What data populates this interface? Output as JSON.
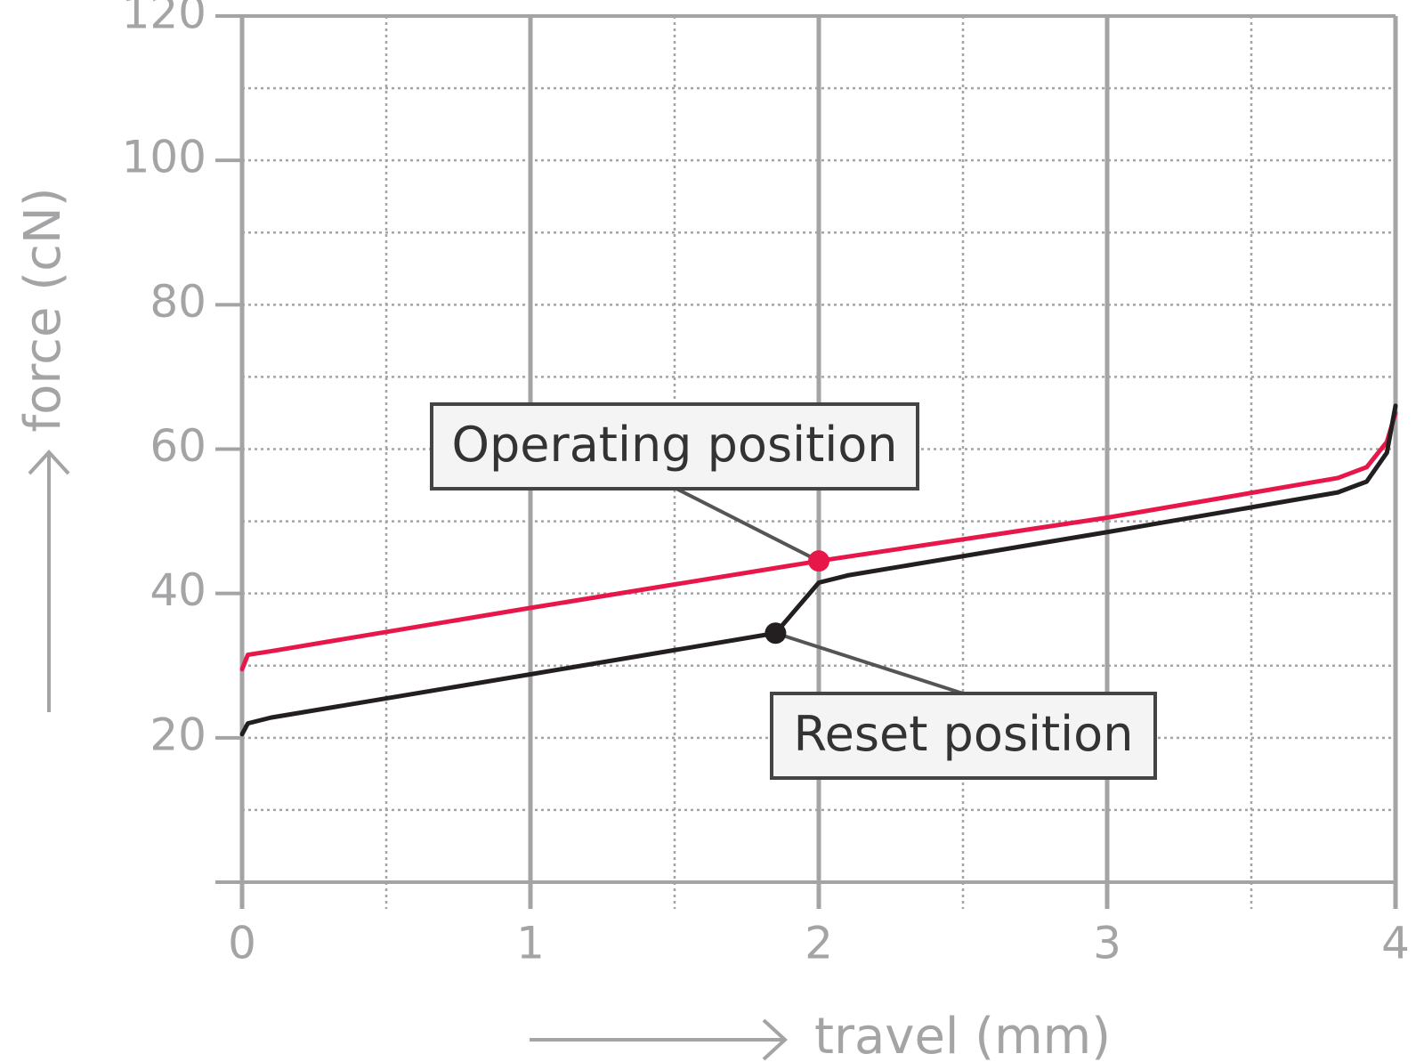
{
  "chart_data": {
    "type": "line",
    "xlabel": "travel (mm)",
    "ylabel": "force (cN)",
    "xlim": [
      0,
      4
    ],
    "ylim": [
      0,
      120
    ],
    "xticks": [
      0,
      1,
      2,
      3,
      4
    ],
    "yticks": [
      20,
      40,
      60,
      80,
      100,
      120
    ],
    "xminor": [
      0.5,
      1.5,
      2.5,
      3.5
    ],
    "yminor": [
      10,
      30,
      50,
      70,
      90,
      110
    ],
    "grid": true,
    "series": [
      {
        "color": "#e8174a",
        "x": [
          0,
          0.02,
          0.1,
          1,
          2,
          3,
          3.8,
          3.9,
          3.97,
          4
        ],
        "values": [
          29.5,
          31.5,
          32,
          38,
          44.5,
          50.5,
          56,
          57.5,
          61,
          65
        ]
      },
      {
        "color": "#231f20",
        "x": [
          0,
          0.02,
          0.1,
          1,
          1.85,
          2,
          2.1,
          3,
          3.8,
          3.9,
          3.97,
          4
        ],
        "values": [
          20.5,
          22,
          22.8,
          28.8,
          34.5,
          41.5,
          42.5,
          48.5,
          54,
          55.5,
          59.5,
          66
        ]
      }
    ],
    "annotations": [
      {
        "text": "Operating position",
        "x": 2,
        "y": 44.5,
        "color": "#e8174a"
      },
      {
        "text": "Reset position",
        "x": 1.85,
        "y": 34.5,
        "color": "#231f20"
      }
    ]
  }
}
